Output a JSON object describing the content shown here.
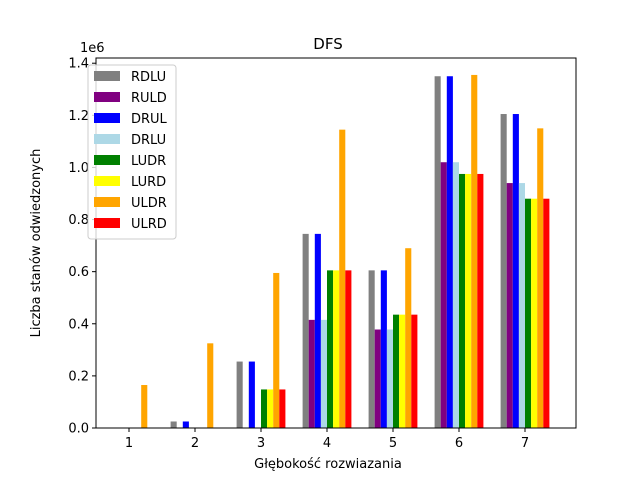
{
  "chart_data": {
    "type": "bar",
    "title": "DFS",
    "xlabel": "Głębokość rozwiazania",
    "ylabel": "Liczba stanów odwiedzonych",
    "y_offset_text": "1e6",
    "y_scale_multiplier": 1000000,
    "categories": [
      "1",
      "2",
      "3",
      "4",
      "5",
      "6",
      "7"
    ],
    "ylim": [
      0,
      1.42
    ],
    "yticks": [
      0.0,
      0.2,
      0.4,
      0.6,
      0.8,
      1.0,
      1.2,
      1.4
    ],
    "ytick_labels": [
      "0.0",
      "0.2",
      "0.4",
      "0.6",
      "0.8",
      "1.0",
      "1.2",
      "1.4"
    ],
    "grid": false,
    "legend_position": "top-left",
    "series": [
      {
        "name": "RDLU",
        "color": "#808080",
        "values": [
          0.0,
          0.025,
          0.255,
          0.745,
          0.605,
          1.35,
          1.205
        ]
      },
      {
        "name": "RULD",
        "color": "#800080",
        "values": [
          0.0,
          0.0,
          0.0,
          0.415,
          0.378,
          1.02,
          0.94
        ]
      },
      {
        "name": "DRUL",
        "color": "#0000ff",
        "values": [
          0.0,
          0.025,
          0.255,
          0.745,
          0.605,
          1.35,
          1.205
        ]
      },
      {
        "name": "DRLU",
        "color": "#add8e6",
        "values": [
          0.0,
          0.0,
          0.0,
          0.415,
          0.378,
          1.02,
          0.94
        ]
      },
      {
        "name": "LUDR",
        "color": "#008000",
        "values": [
          0.0,
          0.0,
          0.148,
          0.605,
          0.435,
          0.975,
          0.88
        ]
      },
      {
        "name": "LURD",
        "color": "#ffff00",
        "values": [
          0.0,
          0.0,
          0.148,
          0.605,
          0.435,
          0.975,
          0.88
        ]
      },
      {
        "name": "ULDR",
        "color": "#ffa500",
        "values": [
          0.165,
          0.325,
          0.595,
          1.145,
          0.69,
          1.355,
          1.15
        ]
      },
      {
        "name": "ULRD",
        "color": "#ff0000",
        "values": [
          0.0,
          0.0,
          0.148,
          0.605,
          0.435,
          0.975,
          0.88
        ]
      }
    ]
  }
}
